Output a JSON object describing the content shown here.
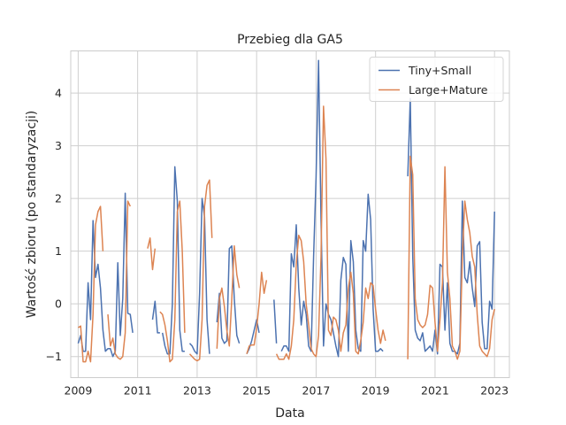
{
  "chart_data": {
    "type": "line",
    "title": "Przebieg dla GA5",
    "xlabel": "Data",
    "ylabel": "Wartość zbioru (po standaryzacji)",
    "xlim": [
      "2008-10",
      "2023-07"
    ],
    "ylim": [
      -1.4,
      4.8
    ],
    "x_ticks": [
      "2009",
      "2011",
      "2013",
      "2015",
      "2017",
      "2019",
      "2021",
      "2023"
    ],
    "y_ticks": [
      "−1",
      "0",
      "1",
      "2",
      "3",
      "4"
    ],
    "grid": true,
    "legend_position": "top-right",
    "colors": {
      "tiny_small": "#4c72b0",
      "large_mature": "#dd8452"
    },
    "series": [
      {
        "name": "Tiny+Small",
        "color": "#4c72b0",
        "points": [
          [
            "2009-01",
            -0.75
          ],
          [
            "2009-02",
            -0.6
          ],
          [
            "2009-03",
            -0.9
          ],
          [
            "2009-04",
            -0.9
          ],
          [
            "2009-05",
            0.4
          ],
          [
            "2009-06",
            -0.3
          ],
          [
            "2009-07",
            1.58
          ],
          [
            "2009-08",
            0.5
          ],
          [
            "2009-09",
            0.75
          ],
          [
            "2009-10",
            0.3
          ],
          [
            "2009-11",
            -0.5
          ],
          [
            "2009-12",
            -0.9
          ],
          [
            "2010-01",
            -0.85
          ],
          [
            "2010-02",
            -0.85
          ],
          [
            "2010-03",
            -1.0
          ],
          [
            "2010-04",
            -0.9
          ],
          [
            "2010-05",
            0.78
          ],
          [
            "2010-06",
            -0.6
          ],
          [
            "2010-07",
            0.1
          ],
          [
            "2010-08",
            2.1
          ],
          [
            "2010-09",
            -0.18
          ],
          [
            "2010-10",
            -0.2
          ],
          [
            "2010-11",
            -0.55
          ],
          null,
          [
            "2011-07",
            -0.3
          ],
          [
            "2011-08",
            0.05
          ],
          [
            "2011-09",
            -0.55
          ],
          [
            "2011-10",
            -0.55
          ],
          null,
          [
            "2011-11",
            -0.55
          ],
          [
            "2011-12",
            -0.8
          ],
          [
            "2012-01",
            -0.95
          ],
          [
            "2012-02",
            -0.95
          ],
          [
            "2012-03",
            0.0
          ],
          [
            "2012-04",
            2.6
          ],
          [
            "2012-05",
            1.95
          ],
          [
            "2012-06",
            -0.5
          ],
          [
            "2012-07",
            -0.9
          ],
          [
            "2012-08",
            -0.9
          ],
          null,
          [
            "2012-10",
            -0.75
          ],
          [
            "2012-11",
            -0.8
          ],
          [
            "2012-12",
            -0.9
          ],
          [
            "2013-01",
            -0.95
          ],
          [
            "2013-02",
            0.2
          ],
          [
            "2013-03",
            2.0
          ],
          [
            "2013-04",
            1.65
          ],
          [
            "2013-05",
            -0.3
          ],
          [
            "2013-06",
            -0.95
          ],
          null,
          [
            "2013-09",
            -0.35
          ],
          [
            "2013-10",
            0.2
          ],
          [
            "2013-11",
            -0.65
          ],
          [
            "2013-12",
            -0.75
          ],
          [
            "2014-01",
            -0.7
          ],
          [
            "2014-02",
            1.05
          ],
          [
            "2014-03",
            1.1
          ],
          [
            "2014-04",
            0.1
          ],
          [
            "2014-05",
            -0.6
          ],
          [
            "2014-06",
            -0.75
          ],
          null,
          [
            "2014-09",
            -0.95
          ],
          [
            "2014-10",
            -0.85
          ],
          [
            "2014-11",
            -0.7
          ],
          [
            "2014-12",
            -0.5
          ],
          [
            "2015-01",
            -0.3
          ],
          [
            "2015-02",
            -0.55
          ],
          null,
          [
            "2015-08",
            0.08
          ],
          [
            "2015-09",
            -0.75
          ],
          null,
          [
            "2015-11",
            -0.9
          ],
          [
            "2015-12",
            -0.8
          ],
          [
            "2016-01",
            -0.8
          ],
          [
            "2016-02",
            -0.9
          ],
          [
            "2016-03",
            0.95
          ],
          [
            "2016-04",
            0.7
          ],
          [
            "2016-05",
            1.5
          ],
          [
            "2016-06",
            0.3
          ],
          [
            "2016-07",
            -0.4
          ],
          [
            "2016-08",
            0.05
          ],
          [
            "2016-09",
            -0.2
          ],
          [
            "2016-10",
            -0.8
          ],
          [
            "2016-11",
            -0.9
          ],
          [
            "2016-12",
            0.9
          ],
          [
            "2017-01",
            2.4
          ],
          [
            "2017-02",
            4.62
          ],
          [
            "2017-03",
            1.6
          ],
          [
            "2017-04",
            -0.8
          ],
          [
            "2017-05",
            0.0
          ],
          [
            "2017-06",
            -0.2
          ],
          [
            "2017-07",
            -0.3
          ],
          [
            "2017-08",
            -0.55
          ],
          [
            "2017-09",
            -0.8
          ],
          [
            "2017-10",
            -1.0
          ],
          [
            "2017-11",
            0.45
          ],
          [
            "2017-12",
            0.88
          ],
          [
            "2018-01",
            0.75
          ],
          [
            "2018-02",
            -0.9
          ],
          [
            "2018-03",
            1.2
          ],
          [
            "2018-04",
            0.8
          ],
          [
            "2018-05",
            -0.5
          ],
          [
            "2018-06",
            -0.85
          ],
          [
            "2018-07",
            -0.9
          ],
          [
            "2018-08",
            1.2
          ],
          [
            "2018-09",
            1.0
          ],
          [
            "2018-10",
            2.08
          ],
          [
            "2018-11",
            1.6
          ],
          [
            "2018-12",
            -0.1
          ],
          [
            "2019-01",
            -0.9
          ],
          [
            "2019-02",
            -0.9
          ],
          [
            "2019-03",
            -0.85
          ],
          [
            "2019-04",
            -0.9
          ],
          null,
          [
            "2020-02",
            2.42
          ],
          [
            "2020-03",
            3.9
          ],
          [
            "2020-04",
            0.9
          ],
          [
            "2020-05",
            -0.5
          ],
          [
            "2020-06",
            -0.65
          ],
          [
            "2020-07",
            -0.7
          ],
          [
            "2020-08",
            -0.55
          ],
          [
            "2020-09",
            -0.9
          ],
          [
            "2020-10",
            -0.85
          ],
          [
            "2020-11",
            -0.8
          ],
          [
            "2020-12",
            -0.9
          ],
          [
            "2021-01",
            -0.5
          ],
          [
            "2021-02",
            -0.95
          ],
          [
            "2021-03",
            0.75
          ],
          [
            "2021-04",
            0.7
          ],
          [
            "2021-05",
            -0.5
          ],
          [
            "2021-06",
            0.4
          ],
          [
            "2021-07",
            -0.75
          ],
          [
            "2021-08",
            -0.9
          ],
          [
            "2021-09",
            -0.9
          ],
          [
            "2021-10",
            -0.95
          ],
          [
            "2021-11",
            -0.75
          ],
          [
            "2021-12",
            1.95
          ],
          [
            "2022-01",
            0.5
          ],
          [
            "2022-02",
            0.4
          ],
          [
            "2022-03",
            0.8
          ],
          [
            "2022-04",
            0.3
          ],
          [
            "2022-05",
            -0.05
          ],
          [
            "2022-06",
            1.1
          ],
          [
            "2022-07",
            1.18
          ],
          [
            "2022-08",
            -0.35
          ],
          [
            "2022-09",
            -0.85
          ],
          [
            "2022-10",
            -0.85
          ],
          [
            "2022-11",
            0.05
          ],
          [
            "2022-12",
            -0.1
          ],
          [
            "2023-01",
            1.75
          ]
        ]
      },
      {
        "name": "Large+Mature",
        "color": "#dd8452",
        "points": [
          [
            "2009-01",
            -0.45
          ],
          [
            "2009-02",
            -0.42
          ],
          [
            "2009-03",
            -1.1
          ],
          [
            "2009-04",
            -1.1
          ],
          [
            "2009-05",
            -0.9
          ],
          [
            "2009-06",
            -1.1
          ],
          [
            "2009-07",
            -0.2
          ],
          [
            "2009-08",
            1.5
          ],
          [
            "2009-09",
            1.75
          ],
          [
            "2009-10",
            1.85
          ],
          [
            "2009-11",
            1.0
          ],
          null,
          [
            "2010-01",
            -0.2
          ],
          [
            "2010-02",
            -0.8
          ],
          [
            "2010-03",
            -0.65
          ],
          [
            "2010-04",
            -0.95
          ],
          [
            "2010-05",
            -1.02
          ],
          [
            "2010-06",
            -1.05
          ],
          [
            "2010-07",
            -1.0
          ],
          [
            "2010-08",
            -0.55
          ],
          [
            "2010-09",
            1.95
          ],
          [
            "2010-10",
            1.85
          ],
          null,
          [
            "2011-05",
            1.05
          ],
          [
            "2011-06",
            1.25
          ],
          [
            "2011-07",
            0.65
          ],
          [
            "2011-08",
            1.05
          ],
          null,
          [
            "2011-10",
            -0.15
          ],
          [
            "2011-11",
            -0.2
          ],
          [
            "2011-12",
            -0.4
          ],
          [
            "2012-01",
            -0.7
          ],
          [
            "2012-02",
            -1.1
          ],
          [
            "2012-03",
            -1.05
          ],
          [
            "2012-04",
            -0.3
          ],
          [
            "2012-05",
            1.75
          ],
          [
            "2012-06",
            1.95
          ],
          [
            "2012-07",
            1.0
          ],
          [
            "2012-08",
            -0.55
          ],
          null,
          [
            "2012-10",
            -0.95
          ],
          [
            "2012-11",
            -1.0
          ],
          [
            "2012-12",
            -1.05
          ],
          [
            "2013-01",
            -1.08
          ],
          [
            "2013-02",
            -1.05
          ],
          [
            "2013-03",
            -0.3
          ],
          [
            "2013-04",
            1.85
          ],
          [
            "2013-05",
            2.25
          ],
          [
            "2013-06",
            2.35
          ],
          [
            "2013-07",
            1.25
          ],
          null,
          [
            "2013-09",
            -0.85
          ],
          [
            "2013-10",
            0.1
          ],
          [
            "2013-11",
            0.3
          ],
          [
            "2013-12",
            -0.05
          ],
          [
            "2014-01",
            -0.5
          ],
          [
            "2014-02",
            -0.8
          ],
          [
            "2014-03",
            0.1
          ],
          [
            "2014-04",
            1.1
          ],
          [
            "2014-05",
            0.55
          ],
          [
            "2014-06",
            0.3
          ],
          null,
          [
            "2014-09",
            -0.95
          ],
          [
            "2014-10",
            -0.8
          ],
          [
            "2014-11",
            -0.78
          ],
          [
            "2014-12",
            -0.78
          ],
          [
            "2015-01",
            -0.45
          ],
          [
            "2015-02",
            0.0
          ],
          [
            "2015-03",
            0.6
          ],
          [
            "2015-04",
            0.2
          ],
          [
            "2015-05",
            0.45
          ],
          null,
          [
            "2015-09",
            -0.95
          ],
          [
            "2015-10",
            -1.05
          ],
          [
            "2015-11",
            -1.05
          ],
          [
            "2015-12",
            -1.05
          ],
          [
            "2016-01",
            -0.95
          ],
          [
            "2016-02",
            -1.05
          ],
          [
            "2016-03",
            -0.8
          ],
          [
            "2016-04",
            -0.3
          ],
          [
            "2016-05",
            0.75
          ],
          [
            "2016-06",
            1.3
          ],
          [
            "2016-07",
            1.2
          ],
          [
            "2016-08",
            0.8
          ],
          [
            "2016-09",
            0.0
          ],
          [
            "2016-10",
            -0.4
          ],
          [
            "2016-11",
            -0.85
          ],
          [
            "2016-12",
            -0.95
          ],
          [
            "2017-01",
            -1.0
          ],
          [
            "2017-02",
            -0.6
          ],
          [
            "2017-03",
            0.9
          ],
          [
            "2017-04",
            3.75
          ],
          [
            "2017-05",
            2.75
          ],
          [
            "2017-06",
            -0.5
          ],
          [
            "2017-07",
            -0.6
          ],
          [
            "2017-08",
            -0.25
          ],
          [
            "2017-09",
            -0.3
          ],
          [
            "2017-10",
            -0.5
          ],
          [
            "2017-11",
            -0.9
          ],
          [
            "2017-12",
            -0.55
          ],
          [
            "2018-01",
            -0.4
          ],
          [
            "2018-02",
            0.3
          ],
          [
            "2018-03",
            0.6
          ],
          [
            "2018-04",
            0.2
          ],
          [
            "2018-05",
            -0.9
          ],
          [
            "2018-06",
            -0.95
          ],
          [
            "2018-07",
            -0.7
          ],
          [
            "2018-08",
            -0.35
          ],
          [
            "2018-09",
            0.3
          ],
          [
            "2018-10",
            0.1
          ],
          [
            "2018-11",
            0.4
          ],
          [
            "2018-12",
            0.35
          ],
          [
            "2019-01",
            -0.1
          ],
          [
            "2019-02",
            -0.5
          ],
          [
            "2019-03",
            -0.75
          ],
          [
            "2019-04",
            -0.5
          ],
          [
            "2019-05",
            -0.7
          ],
          null,
          [
            "2020-02",
            -1.05
          ],
          [
            "2020-03",
            2.8
          ],
          [
            "2020-04",
            2.45
          ],
          [
            "2020-05",
            0.1
          ],
          [
            "2020-06",
            -0.3
          ],
          [
            "2020-07",
            -0.4
          ],
          [
            "2020-08",
            -0.45
          ],
          [
            "2020-09",
            -0.4
          ],
          [
            "2020-10",
            -0.2
          ],
          [
            "2020-11",
            0.35
          ],
          [
            "2020-12",
            0.3
          ],
          [
            "2021-01",
            -0.35
          ],
          [
            "2021-02",
            -0.9
          ],
          [
            "2021-03",
            -0.3
          ],
          [
            "2021-04",
            0.4
          ],
          [
            "2021-05",
            2.6
          ],
          [
            "2021-06",
            0.6
          ],
          [
            "2021-07",
            0.1
          ],
          [
            "2021-08",
            -0.8
          ],
          [
            "2021-09",
            -0.9
          ],
          [
            "2021-10",
            -1.05
          ],
          [
            "2021-11",
            -0.9
          ],
          [
            "2021-12",
            0.9
          ],
          [
            "2022-01",
            1.95
          ],
          [
            "2022-02",
            1.6
          ],
          [
            "2022-03",
            1.35
          ],
          [
            "2022-04",
            0.9
          ],
          [
            "2022-05",
            0.7
          ],
          [
            "2022-06",
            -0.2
          ],
          [
            "2022-07",
            -0.8
          ],
          [
            "2022-08",
            -0.9
          ],
          [
            "2022-09",
            -0.95
          ],
          [
            "2022-10",
            -1.0
          ],
          [
            "2022-11",
            -0.85
          ],
          [
            "2022-12",
            -0.3
          ],
          [
            "2023-01",
            -0.1
          ]
        ]
      }
    ]
  }
}
